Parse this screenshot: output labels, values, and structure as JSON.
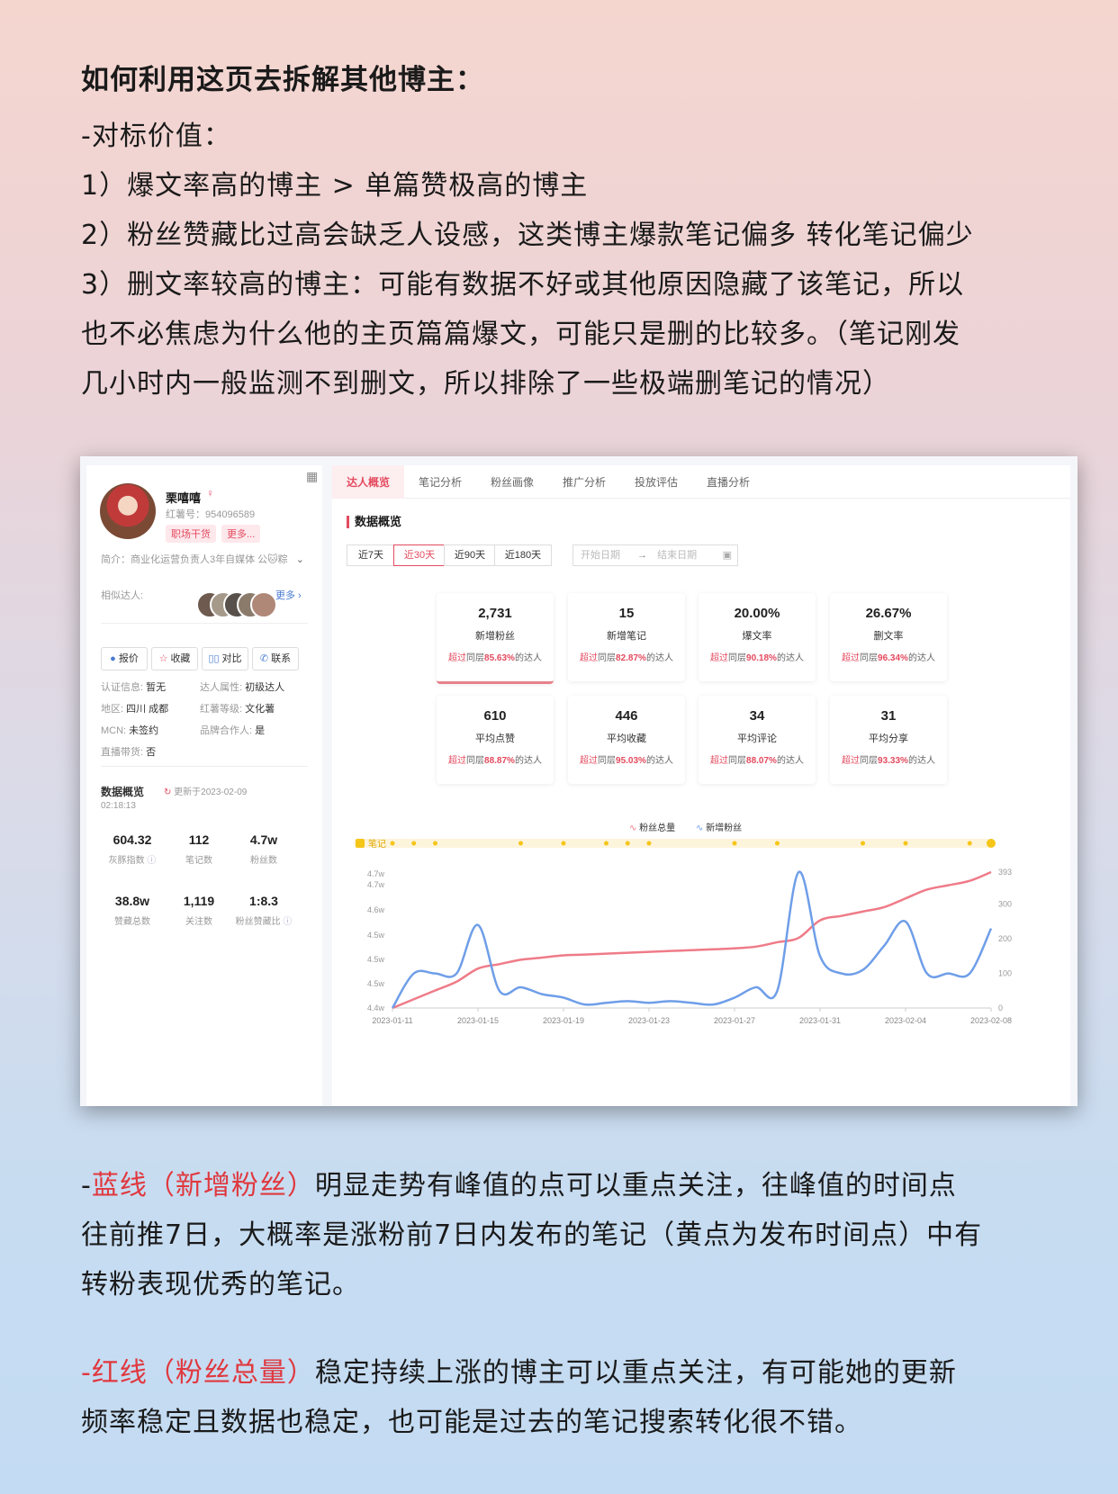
{
  "intro": {
    "heading": "如何利用这页去拆解其他博主：",
    "lines": [
      "-对标价值：",
      "1）爆文率高的博主 > 单篇赞极高的博主",
      "2）粉丝赞藏比过高会缺乏人设感，这类博主爆款笔记偏多 转化笔记偏少",
      "3）删文率较高的博主：可能有数据不好或其他原因隐藏了该笔记，所以",
      "也不必焦虑为什么他的主页篇篇爆文，可能只是删的比较多。（笔记刚发",
      "几小时内一般监测不到删文，所以排除了一些极端删笔记的情况）"
    ]
  },
  "profile": {
    "name": "栗嘻嘻",
    "red_id": "红薯号：954096589",
    "tags": [
      "职场干货",
      "更多..."
    ],
    "bio": "简介：商业化运营负责人3年自媒体 公🐱粽",
    "similar_label": "相似达人:",
    "similar_more": "更多 ›",
    "buttons": [
      "报价",
      "收藏",
      "对比",
      "联系"
    ],
    "info": [
      {
        "k": "认证信息:",
        "v": "暂无"
      },
      {
        "k": "达人属性:",
        "v": "初级达人"
      },
      {
        "k": "地区:",
        "v": "四川 成都"
      },
      {
        "k": "红薯等级:",
        "v": "文化薯"
      },
      {
        "k": "MCN:",
        "v": "未签约"
      },
      {
        "k": "品牌合作人:",
        "v": "是"
      },
      {
        "k": "直播带货:",
        "v": "否"
      }
    ],
    "overview_title": "数据概览",
    "updated": "更新于2023-02-09",
    "updated_time": "02:18:13",
    "stats": [
      {
        "value": "604.32",
        "label": "灰豚指数"
      },
      {
        "value": "112",
        "label": "笔记数"
      },
      {
        "value": "4.7w",
        "label": "粉丝数"
      },
      {
        "value": "38.8w",
        "label": "赞藏总数"
      },
      {
        "value": "1,119",
        "label": "关注数"
      },
      {
        "value": "1:8.3",
        "label": "粉丝赞藏比"
      }
    ]
  },
  "tabs": [
    "达人概览",
    "笔记分析",
    "粉丝画像",
    "推广分析",
    "投放评估",
    "直播分析"
  ],
  "section_title": "数据概览",
  "ranges": [
    "近7天",
    "近30天",
    "近90天",
    "近180天"
  ],
  "date_start": "开始日期",
  "date_arrow": "→",
  "date_end": "结束日期",
  "cards": [
    {
      "value": "2,731",
      "label": "新增粉丝",
      "pct": "85.63%"
    },
    {
      "value": "15",
      "label": "新增笔记",
      "pct": "82.87%"
    },
    {
      "value": "20.00%",
      "label": "爆文率",
      "pct": "90.18%"
    },
    {
      "value": "26.67%",
      "label": "删文率",
      "pct": "96.34%"
    },
    {
      "value": "610",
      "label": "平均点赞",
      "pct": "88.87%"
    },
    {
      "value": "446",
      "label": "平均收藏",
      "pct": "95.03%"
    },
    {
      "value": "34",
      "label": "平均评论",
      "pct": "88.07%"
    },
    {
      "value": "31",
      "label": "平均分享",
      "pct": "93.33%"
    }
  ],
  "card_prefix": "超过",
  "card_mid": "同层",
  "card_suffix": "的达人",
  "legend": {
    "total": "粉丝总量",
    "new": "新增粉丝",
    "notes": "笔记"
  },
  "chart_data": {
    "type": "line",
    "x": [
      "2023-01-11",
      "2023-01-12",
      "2023-01-13",
      "2023-01-14",
      "2023-01-15",
      "2023-01-16",
      "2023-01-17",
      "2023-01-18",
      "2023-01-19",
      "2023-01-20",
      "2023-01-21",
      "2023-01-22",
      "2023-01-23",
      "2023-01-24",
      "2023-01-25",
      "2023-01-26",
      "2023-01-27",
      "2023-01-28",
      "2023-01-29",
      "2023-01-30",
      "2023-01-31",
      "2023-02-01",
      "2023-02-02",
      "2023-02-03",
      "2023-02-04",
      "2023-02-05",
      "2023-02-06",
      "2023-02-07",
      "2023-02-08"
    ],
    "x_ticks": [
      "2023-01-11",
      "2023-01-15",
      "2023-01-19",
      "2023-01-23",
      "2023-01-27",
      "2023-01-31",
      "2023-02-04",
      "2023-02-08"
    ],
    "series": [
      {
        "name": "粉丝总量",
        "color": "#ef7b88",
        "axis": "left",
        "values": [
          44.0,
          44.2,
          44.4,
          44.6,
          44.9,
          45.0,
          45.1,
          45.15,
          45.2,
          45.22,
          45.24,
          45.26,
          45.28,
          45.3,
          45.32,
          45.34,
          45.36,
          45.4,
          45.5,
          45.6,
          46.0,
          46.1,
          46.2,
          46.3,
          46.5,
          46.7,
          46.8,
          46.9,
          47.1
        ]
      },
      {
        "name": "新增粉丝",
        "color": "#6f9ee8",
        "axis": "right",
        "values": [
          0,
          100,
          100,
          100,
          240,
          50,
          60,
          40,
          30,
          10,
          15,
          20,
          15,
          20,
          15,
          10,
          30,
          60,
          50,
          393,
          150,
          100,
          110,
          180,
          250,
          100,
          100,
          100,
          230
        ]
      }
    ],
    "left_ticks": [
      "4.4w",
      "4.5w",
      "4.5w",
      "4.5w",
      "4.6w",
      "4.7w",
      "4.7w"
    ],
    "right_ticks": [
      "0",
      "100",
      "200",
      "300",
      "393"
    ],
    "ylim_left": [
      44.0,
      47.1
    ],
    "ylim_right": [
      0,
      393
    ],
    "note_days": [
      0,
      1,
      2,
      6,
      8,
      10,
      11,
      12,
      16,
      18,
      22,
      24,
      27,
      28
    ]
  },
  "outro": {
    "p1_prefix": "-",
    "p1_hl": "蓝线（新增粉丝）",
    "p1_rest": "明显走势有峰值的点可以重点关注，往峰值的时间点",
    "p1_l2": "往前推7日，大概率是涨粉前7日内发布的笔记（黄点为发布时间点）中有",
    "p1_l3": "转粉表现优秀的笔记。",
    "p2_hl": "-红线（粉丝总量）",
    "p2_rest": "稳定持续上涨的博主可以重点关注，有可能她的更新",
    "p2_l2": "频率稳定且数据也稳定，也可能是过去的笔记搜索转化很不错。"
  },
  "colors": {
    "accent": "#e34b5f",
    "blue": "#6f9ee8",
    "pink": "#ef7b88",
    "note_yellow": "#f5c518"
  }
}
